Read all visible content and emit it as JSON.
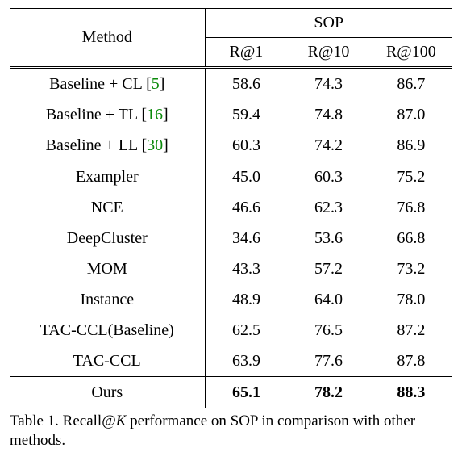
{
  "table": {
    "type": "table",
    "header": {
      "method_label": "Method",
      "group_label": "SOP",
      "cols": [
        "R@1",
        "R@10",
        "R@100"
      ]
    },
    "groups": [
      {
        "rows": [
          {
            "method_prefix": "Baseline + CL [",
            "cite": "5",
            "method_suffix": "]",
            "vals": [
              "58.6",
              "74.3",
              "86.7"
            ]
          },
          {
            "method_prefix": "Baseline + TL [",
            "cite": "16",
            "method_suffix": "]",
            "vals": [
              "59.4",
              "74.8",
              "87.0"
            ]
          },
          {
            "method_prefix": "Baseline + LL [",
            "cite": "30",
            "method_suffix": "]",
            "vals": [
              "60.3",
              "74.2",
              "86.9"
            ]
          }
        ]
      },
      {
        "rows": [
          {
            "method": "Exampler",
            "vals": [
              "45.0",
              "60.3",
              "75.2"
            ]
          },
          {
            "method": "NCE",
            "vals": [
              "46.6",
              "62.3",
              "76.8"
            ]
          },
          {
            "method": "DeepCluster",
            "vals": [
              "34.6",
              "53.6",
              "66.8"
            ]
          },
          {
            "method": "MOM",
            "vals": [
              "43.3",
              "57.2",
              "73.2"
            ]
          },
          {
            "method": "Instance",
            "vals": [
              "48.9",
              "64.0",
              "78.0"
            ]
          },
          {
            "method": "TAC-CCL(Baseline)",
            "vals": [
              "62.5",
              "76.5",
              "87.2"
            ]
          },
          {
            "method": "TAC-CCL",
            "vals": [
              "63.9",
              "77.6",
              "87.8"
            ]
          }
        ]
      },
      {
        "rows": [
          {
            "method": "Ours",
            "vals": [
              "65.1",
              "78.2",
              "88.3"
            ],
            "bold": true
          }
        ]
      }
    ],
    "caption_prefix": "Table 1. Recall@",
    "caption_italic": "K",
    "caption_suffix": " performance on SOP in comparison with other methods.",
    "cite_color": "#0b8a0b",
    "rule_color": "#000000",
    "background_color": "#ffffff",
    "font_family": "Times New Roman",
    "body_fontsize_pt": 15,
    "caption_fontsize_pt": 14
  }
}
